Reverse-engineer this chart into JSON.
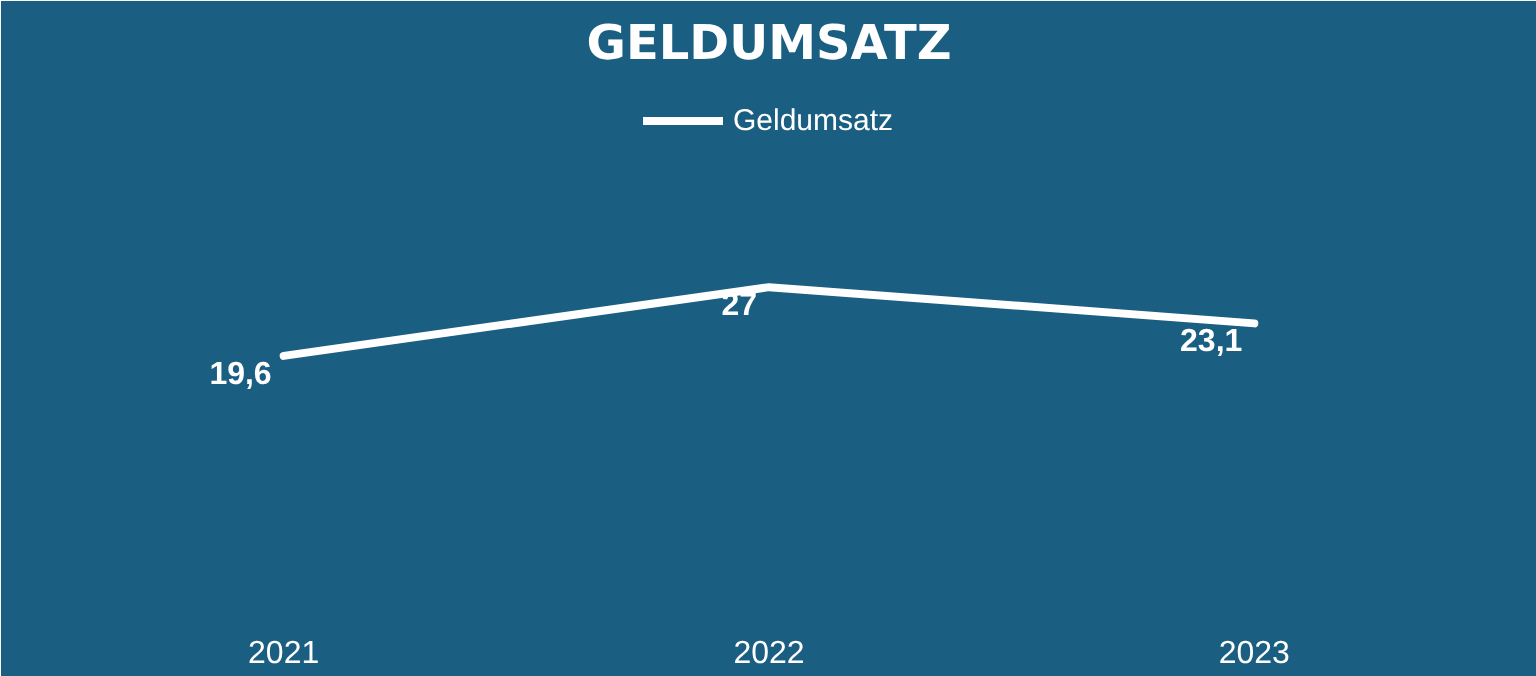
{
  "chart_data": {
    "type": "line",
    "title": "GELDUMSATZ",
    "categories": [
      "2021",
      "2022",
      "2023"
    ],
    "series": [
      {
        "name": "Geldumsatz",
        "color": "#ffffff",
        "values": [
          19.6,
          27,
          23.1
        ],
        "value_labels": [
          "19,6",
          "27",
          "23,1"
        ]
      }
    ],
    "legend": "top",
    "grid": false,
    "marker": "none",
    "line_style": "solid"
  }
}
